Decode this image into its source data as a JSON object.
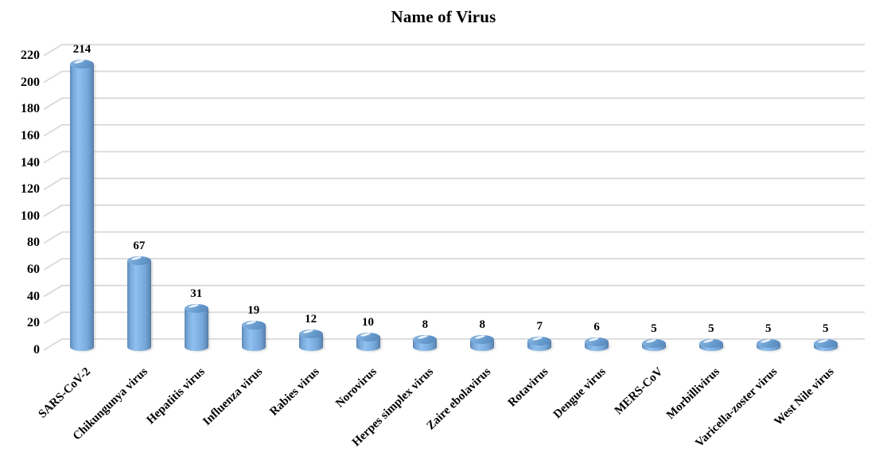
{
  "figure": {
    "title": "Name of Virus"
  },
  "chart_data": {
    "type": "bar",
    "subtype": "3d-cylinder",
    "title": "Name of Virus",
    "xlabel": "",
    "ylabel": "",
    "categories": [
      "SARS-CoV-2",
      "Chikungunya virus",
      "Hepatitis virus",
      "Influenza virus",
      "Rabies virus",
      "Norovirus",
      "Herpes simplex virus",
      "Zaire ebolavirus",
      "Rotavirus",
      "Dengue virus",
      "MERS-CoV",
      "Morbillivirus",
      "Varicella-zoster virus",
      "West Nile virus"
    ],
    "values": [
      214,
      67,
      31,
      19,
      12,
      10,
      8,
      8,
      7,
      6,
      5,
      5,
      5,
      5
    ],
    "ylim": [
      0,
      220
    ],
    "ytick_step": 20,
    "yticks": [
      0,
      20,
      40,
      60,
      80,
      100,
      120,
      140,
      160,
      180,
      200,
      220
    ],
    "grid": true,
    "legend": false,
    "data_labels": true,
    "label_rotation_deg": 44,
    "colors": {
      "bar_fill": "#83b4e6",
      "bar_edge": "#5e88b5",
      "bar_top": "#6094c8",
      "gridline": "#d9d9d9",
      "text": "#000000",
      "background": "#ffffff"
    }
  }
}
